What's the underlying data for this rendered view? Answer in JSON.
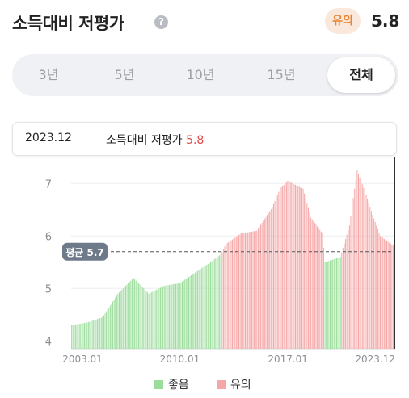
{
  "header": {
    "title": "소득대비 저평가",
    "help_icon": "?",
    "badge": "유의",
    "score": "5.8"
  },
  "tabs": [
    {
      "label": "3년",
      "active": false
    },
    {
      "label": "5년",
      "active": false
    },
    {
      "label": "10년",
      "active": false
    },
    {
      "label": "15년",
      "active": false
    },
    {
      "label": "전체",
      "active": true
    }
  ],
  "tooltip": {
    "date": "2023.12",
    "label": "소득대비 저평가",
    "value": "5.8"
  },
  "colors": {
    "good": "#9bdd9b",
    "caution": "#f5a6a6",
    "accent_red": "#e04b4b",
    "badge_text": "#e9832f",
    "badge_bg": "#fbe8dc"
  },
  "chart_data": {
    "type": "bar",
    "x_start": "2003.01",
    "x_end": "2023.12",
    "x_tick_labels": [
      "2003.01",
      "2010.01",
      "2017.01",
      "2023.12"
    ],
    "y_ticks": [
      4,
      5,
      6,
      7
    ],
    "ylim": [
      3.85,
      7.45
    ],
    "average": 5.7,
    "average_label": "평균 5.7",
    "legend": [
      {
        "name": "좋음",
        "color": "#9bdd9b"
      },
      {
        "name": "유의",
        "color": "#f5a6a6"
      }
    ],
    "segments": [
      {
        "from": "2003.01",
        "to": "2012.09",
        "category": "좋음"
      },
      {
        "from": "2012.10",
        "to": "2019.04",
        "category": "유의"
      },
      {
        "from": "2019.05",
        "to": "2020.06",
        "category": "좋음"
      },
      {
        "from": "2020.07",
        "to": "2023.12",
        "category": "유의"
      }
    ],
    "series_points": [
      [
        "2003.01",
        4.3
      ],
      [
        "2004.01",
        4.35
      ],
      [
        "2005.01",
        4.45
      ],
      [
        "2006.01",
        4.9
      ],
      [
        "2007.01",
        5.2
      ],
      [
        "2008.01",
        4.9
      ],
      [
        "2009.01",
        5.05
      ],
      [
        "2010.01",
        5.1
      ],
      [
        "2011.01",
        5.3
      ],
      [
        "2012.01",
        5.5
      ],
      [
        "2012.09",
        5.65
      ],
      [
        "2013.01",
        5.85
      ],
      [
        "2014.01",
        6.05
      ],
      [
        "2015.01",
        6.1
      ],
      [
        "2016.01",
        6.55
      ],
      [
        "2016.07",
        6.9
      ],
      [
        "2017.01",
        7.05
      ],
      [
        "2018.01",
        6.9
      ],
      [
        "2018.07",
        6.35
      ],
      [
        "2019.04",
        6.05
      ],
      [
        "2019.06",
        5.5
      ],
      [
        "2020.06",
        5.6
      ],
      [
        "2021.01",
        6.2
      ],
      [
        "2021.07",
        7.25
      ],
      [
        "2022.01",
        6.85
      ],
      [
        "2022.07",
        6.4
      ],
      [
        "2023.01",
        6.0
      ],
      [
        "2023.12",
        5.8
      ]
    ]
  }
}
